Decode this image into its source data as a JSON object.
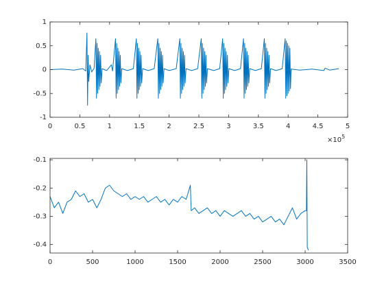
{
  "chart_data": [
    {
      "type": "line",
      "xlim": [
        0,
        500000
      ],
      "ylim": [
        -1,
        1
      ],
      "xticks": [
        0,
        {
          "value": 50000,
          "label": "0.5"
        },
        {
          "value": 100000,
          "label": "1"
        },
        {
          "value": 150000,
          "label": "1.5"
        },
        {
          "value": 200000,
          "label": "2"
        },
        {
          "value": 250000,
          "label": "2.5"
        },
        {
          "value": 300000,
          "label": "3"
        },
        {
          "value": 350000,
          "label": "3.5"
        },
        {
          "value": 400000,
          "label": "4"
        },
        {
          "value": 450000,
          "label": "4.5"
        },
        {
          "value": 500000,
          "label": "5"
        }
      ],
      "yticks": [
        -1,
        -0.5,
        0,
        0.5,
        1
      ],
      "x_exponent_base": "×10",
      "x_exponent": "5",
      "x": [
        0,
        20000,
        40000,
        55000,
        60000,
        62000,
        63000,
        64000,
        65000,
        67000,
        70000,
        74000,
        77000,
        78000,
        79000,
        80000,
        81000,
        82000,
        83000,
        84000,
        85000,
        86000,
        87500,
        95000,
        103000,
        105000,
        110000,
        111000,
        112000,
        113000,
        114000,
        115000,
        116000,
        117000,
        118000,
        119000,
        120500,
        130000,
        140000,
        145000,
        146000,
        147000,
        148000,
        149000,
        150000,
        151000,
        152000,
        153000,
        154000,
        155500,
        165000,
        175000,
        181000,
        182000,
        183000,
        184000,
        185000,
        186000,
        187000,
        188000,
        189000,
        190000,
        191500,
        200000,
        212000,
        218000,
        219000,
        220000,
        221000,
        222000,
        223000,
        224000,
        225000,
        226000,
        227000,
        228500,
        238000,
        248000,
        254000,
        255000,
        256000,
        257000,
        258000,
        259000,
        260000,
        261000,
        262000,
        263000,
        264500,
        275000,
        285000,
        290000,
        291000,
        292000,
        293000,
        294000,
        295000,
        296000,
        297000,
        298000,
        299000,
        300500,
        310000,
        320000,
        325000,
        326000,
        327000,
        328000,
        329000,
        330000,
        331000,
        332000,
        333000,
        334000,
        335500,
        345000,
        355000,
        360000,
        361000,
        362000,
        363000,
        364000,
        365000,
        366000,
        367000,
        368000,
        369000,
        370500,
        380000,
        390000,
        395000,
        396000,
        397000,
        398000,
        399000,
        400000,
        401000,
        402000,
        403000,
        404000,
        405000,
        420000,
        440000,
        460000,
        462000,
        470000,
        485000
      ],
      "series": [
        {
          "color": "#0072bd",
          "values": [
            0,
            0.01,
            -0.01,
            0.02,
            -0.03,
            0.77,
            -0.75,
            0.3,
            -0.25,
            0.1,
            -0.05,
            0.03,
            0.65,
            -0.6,
            0.55,
            -0.5,
            0.45,
            -0.42,
            0.38,
            -0.35,
            0.3,
            -0.28,
            0.02,
            -0.02,
            0.1,
            -0.03,
            0.65,
            -0.6,
            0.55,
            -0.5,
            0.45,
            -0.42,
            0.38,
            -0.35,
            0.3,
            -0.28,
            0.02,
            -0.02,
            0.02,
            0.65,
            -0.6,
            0.55,
            -0.5,
            0.45,
            -0.42,
            0.38,
            -0.35,
            0.3,
            -0.28,
            0.02,
            -0.02,
            0.02,
            0.65,
            -0.6,
            0.55,
            -0.5,
            0.45,
            -0.42,
            0.38,
            -0.35,
            0.3,
            -0.28,
            0.02,
            -0.02,
            0.02,
            0.65,
            -0.6,
            0.55,
            -0.5,
            0.45,
            -0.42,
            0.38,
            -0.35,
            0.3,
            -0.28,
            0.02,
            -0.02,
            0.02,
            0.65,
            -0.6,
            0.55,
            -0.5,
            0.45,
            -0.42,
            0.38,
            -0.35,
            0.3,
            -0.28,
            0.02,
            -0.02,
            0.02,
            0.65,
            -0.6,
            0.55,
            -0.5,
            0.45,
            -0.42,
            0.38,
            -0.35,
            0.3,
            -0.28,
            0.02,
            -0.02,
            0.02,
            0.65,
            -0.6,
            0.55,
            -0.5,
            0.45,
            -0.42,
            0.38,
            -0.35,
            0.3,
            -0.28,
            0.02,
            -0.02,
            0.02,
            0.65,
            -0.6,
            0.55,
            -0.5,
            0.45,
            -0.42,
            0.38,
            -0.35,
            0.3,
            -0.28,
            0.02,
            -0.02,
            0.02,
            0.65,
            -0.6,
            0.6,
            -0.55,
            0.55,
            -0.5,
            0.5,
            -0.45,
            0.45,
            -0.4,
            0.01,
            -0.01,
            0.01,
            -0.02,
            0.03,
            -0.01,
            0.02
          ]
        }
      ]
    },
    {
      "type": "line",
      "xlim": [
        0,
        3500
      ],
      "ylim": [
        -0.43,
        -0.095
      ],
      "xticks": [
        0,
        500,
        1000,
        1500,
        2000,
        2500,
        3000,
        3500
      ],
      "yticks": [
        -0.4,
        -0.3,
        -0.2,
        -0.1
      ],
      "x": [
        0,
        50,
        100,
        150,
        200,
        250,
        300,
        350,
        400,
        450,
        500,
        550,
        600,
        650,
        700,
        750,
        800,
        850,
        900,
        950,
        1000,
        1050,
        1100,
        1150,
        1200,
        1250,
        1300,
        1350,
        1400,
        1450,
        1500,
        1550,
        1600,
        1650,
        1660,
        1700,
        1750,
        1800,
        1850,
        1900,
        1950,
        2000,
        2050,
        2100,
        2150,
        2200,
        2250,
        2300,
        2350,
        2400,
        2450,
        2500,
        2550,
        2600,
        2650,
        2700,
        2750,
        2800,
        2850,
        2900,
        2950,
        3000,
        3015,
        3020,
        3025,
        3040
      ],
      "series": [
        {
          "color": "#0072bd",
          "values": [
            -0.23,
            -0.27,
            -0.25,
            -0.29,
            -0.25,
            -0.24,
            -0.21,
            -0.23,
            -0.22,
            -0.25,
            -0.24,
            -0.27,
            -0.24,
            -0.2,
            -0.19,
            -0.21,
            -0.22,
            -0.23,
            -0.22,
            -0.24,
            -0.23,
            -0.24,
            -0.23,
            -0.25,
            -0.24,
            -0.23,
            -0.25,
            -0.24,
            -0.26,
            -0.24,
            -0.25,
            -0.23,
            -0.24,
            -0.19,
            -0.28,
            -0.27,
            -0.29,
            -0.28,
            -0.27,
            -0.29,
            -0.28,
            -0.3,
            -0.28,
            -0.29,
            -0.3,
            -0.29,
            -0.28,
            -0.3,
            -0.29,
            -0.31,
            -0.3,
            -0.32,
            -0.31,
            -0.3,
            -0.32,
            -0.31,
            -0.33,
            -0.3,
            -0.27,
            -0.31,
            -0.29,
            -0.28,
            -0.28,
            -0.1,
            -0.41,
            -0.42
          ]
        }
      ]
    }
  ]
}
